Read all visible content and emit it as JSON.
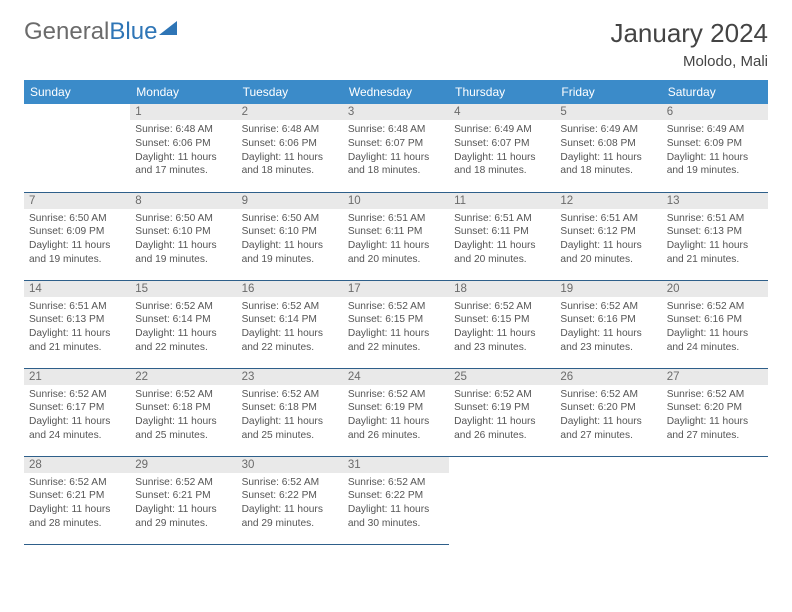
{
  "logo": {
    "text1": "General",
    "text2": "Blue"
  },
  "title": "January 2024",
  "location": "Molodo, Mali",
  "colors": {
    "header_bg": "#3b8bc9",
    "header_text": "#ffffff",
    "daynum_bg": "#e9e9e9",
    "daynum_text": "#6b6b6b",
    "border": "#2e5f8a",
    "logo_gray": "#6b6b6b",
    "logo_blue": "#2e75b6"
  },
  "dow": [
    "Sunday",
    "Monday",
    "Tuesday",
    "Wednesday",
    "Thursday",
    "Friday",
    "Saturday"
  ],
  "weeks": [
    [
      null,
      {
        "n": "1",
        "sr": "Sunrise: 6:48 AM",
        "ss": "Sunset: 6:06 PM",
        "dl": "Daylight: 11 hours and 17 minutes."
      },
      {
        "n": "2",
        "sr": "Sunrise: 6:48 AM",
        "ss": "Sunset: 6:06 PM",
        "dl": "Daylight: 11 hours and 18 minutes."
      },
      {
        "n": "3",
        "sr": "Sunrise: 6:48 AM",
        "ss": "Sunset: 6:07 PM",
        "dl": "Daylight: 11 hours and 18 minutes."
      },
      {
        "n": "4",
        "sr": "Sunrise: 6:49 AM",
        "ss": "Sunset: 6:07 PM",
        "dl": "Daylight: 11 hours and 18 minutes."
      },
      {
        "n": "5",
        "sr": "Sunrise: 6:49 AM",
        "ss": "Sunset: 6:08 PM",
        "dl": "Daylight: 11 hours and 18 minutes."
      },
      {
        "n": "6",
        "sr": "Sunrise: 6:49 AM",
        "ss": "Sunset: 6:09 PM",
        "dl": "Daylight: 11 hours and 19 minutes."
      }
    ],
    [
      {
        "n": "7",
        "sr": "Sunrise: 6:50 AM",
        "ss": "Sunset: 6:09 PM",
        "dl": "Daylight: 11 hours and 19 minutes."
      },
      {
        "n": "8",
        "sr": "Sunrise: 6:50 AM",
        "ss": "Sunset: 6:10 PM",
        "dl": "Daylight: 11 hours and 19 minutes."
      },
      {
        "n": "9",
        "sr": "Sunrise: 6:50 AM",
        "ss": "Sunset: 6:10 PM",
        "dl": "Daylight: 11 hours and 19 minutes."
      },
      {
        "n": "10",
        "sr": "Sunrise: 6:51 AM",
        "ss": "Sunset: 6:11 PM",
        "dl": "Daylight: 11 hours and 20 minutes."
      },
      {
        "n": "11",
        "sr": "Sunrise: 6:51 AM",
        "ss": "Sunset: 6:11 PM",
        "dl": "Daylight: 11 hours and 20 minutes."
      },
      {
        "n": "12",
        "sr": "Sunrise: 6:51 AM",
        "ss": "Sunset: 6:12 PM",
        "dl": "Daylight: 11 hours and 20 minutes."
      },
      {
        "n": "13",
        "sr": "Sunrise: 6:51 AM",
        "ss": "Sunset: 6:13 PM",
        "dl": "Daylight: 11 hours and 21 minutes."
      }
    ],
    [
      {
        "n": "14",
        "sr": "Sunrise: 6:51 AM",
        "ss": "Sunset: 6:13 PM",
        "dl": "Daylight: 11 hours and 21 minutes."
      },
      {
        "n": "15",
        "sr": "Sunrise: 6:52 AM",
        "ss": "Sunset: 6:14 PM",
        "dl": "Daylight: 11 hours and 22 minutes."
      },
      {
        "n": "16",
        "sr": "Sunrise: 6:52 AM",
        "ss": "Sunset: 6:14 PM",
        "dl": "Daylight: 11 hours and 22 minutes."
      },
      {
        "n": "17",
        "sr": "Sunrise: 6:52 AM",
        "ss": "Sunset: 6:15 PM",
        "dl": "Daylight: 11 hours and 22 minutes."
      },
      {
        "n": "18",
        "sr": "Sunrise: 6:52 AM",
        "ss": "Sunset: 6:15 PM",
        "dl": "Daylight: 11 hours and 23 minutes."
      },
      {
        "n": "19",
        "sr": "Sunrise: 6:52 AM",
        "ss": "Sunset: 6:16 PM",
        "dl": "Daylight: 11 hours and 23 minutes."
      },
      {
        "n": "20",
        "sr": "Sunrise: 6:52 AM",
        "ss": "Sunset: 6:16 PM",
        "dl": "Daylight: 11 hours and 24 minutes."
      }
    ],
    [
      {
        "n": "21",
        "sr": "Sunrise: 6:52 AM",
        "ss": "Sunset: 6:17 PM",
        "dl": "Daylight: 11 hours and 24 minutes."
      },
      {
        "n": "22",
        "sr": "Sunrise: 6:52 AM",
        "ss": "Sunset: 6:18 PM",
        "dl": "Daylight: 11 hours and 25 minutes."
      },
      {
        "n": "23",
        "sr": "Sunrise: 6:52 AM",
        "ss": "Sunset: 6:18 PM",
        "dl": "Daylight: 11 hours and 25 minutes."
      },
      {
        "n": "24",
        "sr": "Sunrise: 6:52 AM",
        "ss": "Sunset: 6:19 PM",
        "dl": "Daylight: 11 hours and 26 minutes."
      },
      {
        "n": "25",
        "sr": "Sunrise: 6:52 AM",
        "ss": "Sunset: 6:19 PM",
        "dl": "Daylight: 11 hours and 26 minutes."
      },
      {
        "n": "26",
        "sr": "Sunrise: 6:52 AM",
        "ss": "Sunset: 6:20 PM",
        "dl": "Daylight: 11 hours and 27 minutes."
      },
      {
        "n": "27",
        "sr": "Sunrise: 6:52 AM",
        "ss": "Sunset: 6:20 PM",
        "dl": "Daylight: 11 hours and 27 minutes."
      }
    ],
    [
      {
        "n": "28",
        "sr": "Sunrise: 6:52 AM",
        "ss": "Sunset: 6:21 PM",
        "dl": "Daylight: 11 hours and 28 minutes."
      },
      {
        "n": "29",
        "sr": "Sunrise: 6:52 AM",
        "ss": "Sunset: 6:21 PM",
        "dl": "Daylight: 11 hours and 29 minutes."
      },
      {
        "n": "30",
        "sr": "Sunrise: 6:52 AM",
        "ss": "Sunset: 6:22 PM",
        "dl": "Daylight: 11 hours and 29 minutes."
      },
      {
        "n": "31",
        "sr": "Sunrise: 6:52 AM",
        "ss": "Sunset: 6:22 PM",
        "dl": "Daylight: 11 hours and 30 minutes."
      },
      null,
      null,
      null
    ]
  ]
}
